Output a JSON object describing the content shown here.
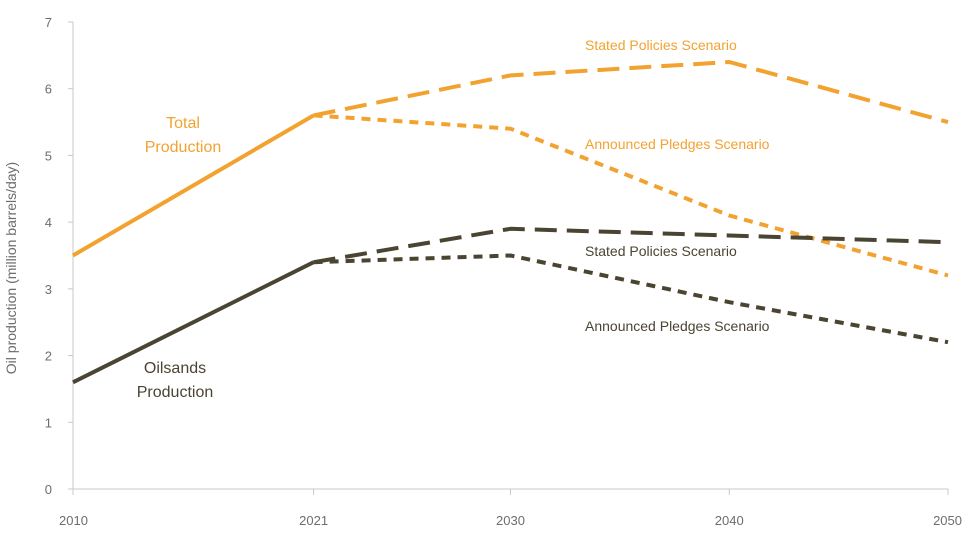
{
  "chart_data": {
    "type": "line",
    "ylabel": "Oil production (million barrels/day)",
    "xlabel": "",
    "x_ticks": [
      "2010",
      "2021",
      "2030",
      "2040",
      "2050"
    ],
    "y_ticks": [
      "0",
      "1",
      "2",
      "3",
      "4",
      "5",
      "6",
      "7"
    ],
    "ylim": [
      0,
      7
    ],
    "colors": {
      "total": "#f2a22f",
      "oilsands": "#4a4432",
      "axis": "#c8c8c8",
      "tick_text": "#6d6d6d"
    },
    "series": [
      {
        "group": "total",
        "style": "solid",
        "x": [
          "2010",
          "2021"
        ],
        "values": [
          3.5,
          5.6
        ]
      },
      {
        "group": "total",
        "style": "long-dash",
        "x": [
          "2021",
          "2030",
          "2040",
          "2050"
        ],
        "values": [
          5.6,
          6.2,
          6.4,
          5.5
        ]
      },
      {
        "group": "total",
        "style": "short-dash",
        "x": [
          "2021",
          "2030",
          "2040",
          "2050"
        ],
        "values": [
          5.6,
          5.4,
          4.1,
          3.2
        ]
      },
      {
        "group": "oilsands",
        "style": "solid",
        "x": [
          "2010",
          "2021"
        ],
        "values": [
          1.6,
          3.4
        ]
      },
      {
        "group": "oilsands",
        "style": "long-dash",
        "x": [
          "2021",
          "2030",
          "2040",
          "2050"
        ],
        "values": [
          3.4,
          3.9,
          3.8,
          3.7
        ]
      },
      {
        "group": "oilsands",
        "style": "short-dash",
        "x": [
          "2021",
          "2030",
          "2040",
          "2050"
        ],
        "values": [
          3.4,
          3.5,
          2.8,
          2.2
        ]
      }
    ],
    "annotations": [
      {
        "group": "total",
        "lines": [
          "Total",
          "Production"
        ]
      },
      {
        "group": "total",
        "lines": [
          "Stated Policies Scenario"
        ]
      },
      {
        "group": "total",
        "lines": [
          "Announced Pledges Scenario"
        ]
      },
      {
        "group": "oilsands",
        "lines": [
          "Oilsands",
          "Production"
        ]
      },
      {
        "group": "oilsands",
        "lines": [
          "Stated Policies Scenario"
        ]
      },
      {
        "group": "oilsands",
        "lines": [
          "Announced Pledges Scenario"
        ]
      }
    ]
  }
}
